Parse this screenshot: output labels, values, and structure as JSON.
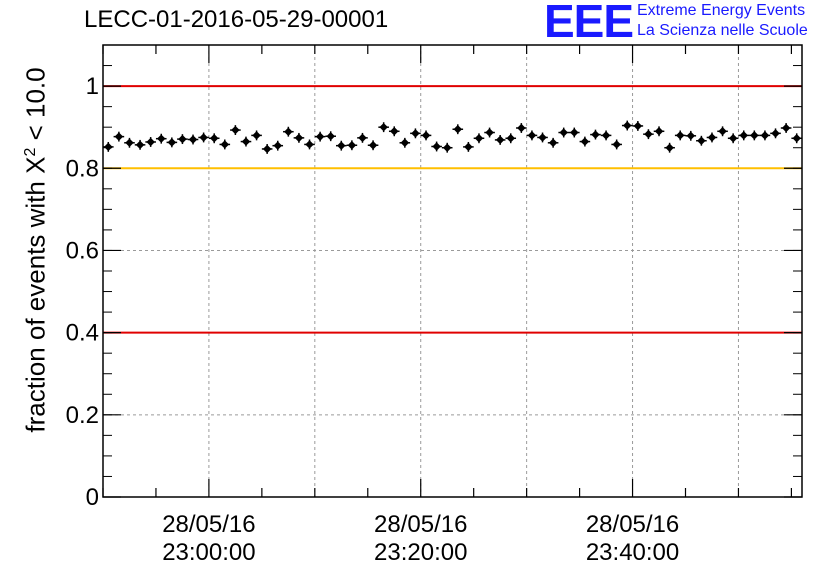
{
  "title": "LECC-01-2016-05-29-00001",
  "logo": {
    "mark": "EEE",
    "line1": "Extreme Energy Events",
    "line2": "La Scienza nelle Scuole",
    "color": "#1a1aff"
  },
  "chart_data": {
    "type": "scatter",
    "ylabel_prefix": "fraction of events with X",
    "ylabel_sup": "2",
    "ylabel_suffix": " < 10.0",
    "ylim": [
      0,
      1.1
    ],
    "yticks": [
      "0",
      "0.2",
      "0.4",
      "0.6",
      "0.8",
      "1"
    ],
    "xticks": [
      {
        "date": "28/05/16",
        "time": "23:00:00"
      },
      {
        "date": "28/05/16",
        "time": "23:20:00"
      },
      {
        "date": "28/05/16",
        "time": "23:40:00"
      }
    ],
    "x_range_minutes": [
      -10,
      56
    ],
    "grid": true,
    "reference_lines": [
      {
        "y": 1.0,
        "color": "#e00000"
      },
      {
        "y": 0.8,
        "color": "#ffbf00"
      },
      {
        "y": 0.4,
        "color": "#e00000"
      }
    ],
    "series": [
      {
        "marker_color": "#000000",
        "x_minutes": [
          -9.5,
          -8.5,
          -7.5,
          -6.5,
          -5.5,
          -4.5,
          -3.5,
          -2.5,
          -1.5,
          -0.5,
          0.5,
          1.5,
          2.5,
          3.5,
          4.5,
          5.5,
          6.5,
          7.5,
          8.5,
          9.5,
          10.5,
          11.5,
          12.5,
          13.5,
          14.5,
          15.5,
          16.5,
          17.5,
          18.5,
          19.5,
          20.5,
          21.5,
          22.5,
          23.5,
          24.5,
          25.5,
          26.5,
          27.5,
          28.5,
          29.5,
          30.5,
          31.5,
          32.5,
          33.5,
          34.5,
          35.5,
          36.5,
          37.5,
          38.5,
          39.5,
          40.5,
          41.5,
          42.5,
          43.5,
          44.5,
          45.5,
          46.5,
          47.5,
          48.5,
          49.5,
          50.5,
          51.5,
          52.5,
          53.5,
          54.5,
          55.5
        ],
        "y": [
          0.852,
          0.877,
          0.862,
          0.857,
          0.864,
          0.872,
          0.863,
          0.871,
          0.87,
          0.875,
          0.873,
          0.858,
          0.893,
          0.865,
          0.88,
          0.847,
          0.855,
          0.889,
          0.874,
          0.858,
          0.877,
          0.878,
          0.855,
          0.856,
          0.874,
          0.856,
          0.9,
          0.89,
          0.862,
          0.885,
          0.88,
          0.853,
          0.85,
          0.895,
          0.852,
          0.873,
          0.887,
          0.869,
          0.873,
          0.898,
          0.88,
          0.875,
          0.862,
          0.887,
          0.887,
          0.865,
          0.882,
          0.88,
          0.858,
          0.904,
          0.903,
          0.883,
          0.89,
          0.85,
          0.88,
          0.879,
          0.867,
          0.875,
          0.89,
          0.873,
          0.88,
          0.88,
          0.88,
          0.885,
          0.898,
          0.873
        ],
        "y_err": 0.012
      }
    ]
  }
}
